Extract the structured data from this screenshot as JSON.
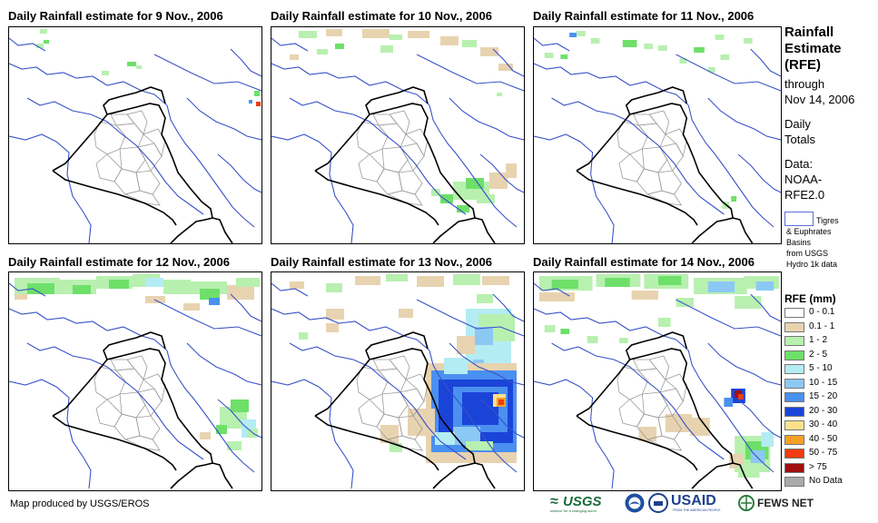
{
  "panels": [
    {
      "title": "Daily Rainfall estimate for 9 Nov., 2006"
    },
    {
      "title": "Daily Rainfall estimate for 10 Nov., 2006"
    },
    {
      "title": "Daily Rainfall estimate for 11 Nov., 2006"
    },
    {
      "title": "Daily Rainfall estimate for 12 Nov., 2006"
    },
    {
      "title": "Daily Rainfall estimate for 13 Nov., 2006"
    },
    {
      "title": "Daily Rainfall estimate for 14 Nov., 2006"
    }
  ],
  "sidebar": {
    "title_line1": "Rainfall",
    "title_line2": "Estimate",
    "title_line3": "(RFE)",
    "through": "through",
    "date": "Nov 14, 2006",
    "daily": "Daily",
    "totals": "Totals",
    "data_label": "Data:",
    "data_source1": "NOAA-",
    "data_source2": "RFE2.0",
    "basin_line1": "Tigres",
    "basin_line2": "& Euphrates",
    "basin_line3": "Basins",
    "basin_line4": "from USGS",
    "basin_line5": "Hydro 1k data"
  },
  "legend": {
    "title": "RFE (mm)",
    "items": [
      {
        "label": "0 - 0.1",
        "color": "#ffffff"
      },
      {
        "label": "0.1 - 1",
        "color": "#e8d3b0"
      },
      {
        "label": "1 - 2",
        "color": "#b8f0b0"
      },
      {
        "label": "2 - 5",
        "color": "#6ee06a"
      },
      {
        "label": "5 - 10",
        "color": "#b4ecf4"
      },
      {
        "label": "10 - 15",
        "color": "#8cc8f4"
      },
      {
        "label": "15 - 20",
        "color": "#4a90f0"
      },
      {
        "label": "20 - 30",
        "color": "#1a44d8"
      },
      {
        "label": "30 - 40",
        "color": "#fce08c"
      },
      {
        "label": "40 - 50",
        "color": "#f4a028"
      },
      {
        "label": "50 - 75",
        "color": "#f03c10"
      },
      {
        "label": "> 75",
        "color": "#a01010"
      },
      {
        "label": "No Data",
        "color": "#aaaaaa"
      }
    ]
  },
  "footer": {
    "credit": "Map produced by USGS/EROS",
    "logo_usgs": "USGS",
    "logo_usgs_tagline": "science for a changing world",
    "logo_usaid": "USAID",
    "logo_usaid_tagline": "FROM THE AMERICAN PEOPLE",
    "logo_fews": "FEWS NET"
  }
}
